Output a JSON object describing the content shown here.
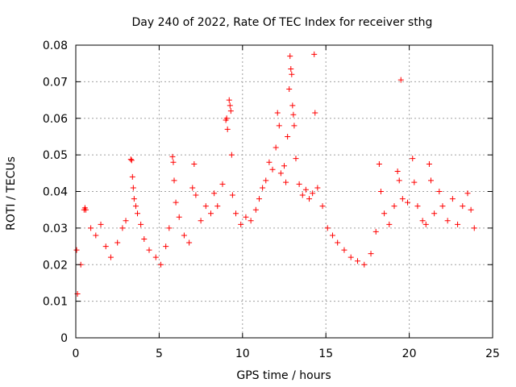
{
  "chart_data": {
    "type": "scatter",
    "title": "Day 240 of 2022, Rate Of TEC Index for receiver sthg",
    "xlabel": "GPS time / hours",
    "ylabel": "ROTI / TECUs",
    "xlim": [
      0,
      25
    ],
    "ylim": [
      0,
      0.08
    ],
    "xticks": [
      0,
      5,
      10,
      15,
      20,
      25
    ],
    "yticks": [
      0,
      0.01,
      0.02,
      0.03,
      0.04,
      0.05,
      0.06,
      0.07,
      0.08
    ],
    "grid": true,
    "marker": "plus",
    "color": "#ff0000",
    "series": [
      {
        "name": "ROTI",
        "points": [
          [
            0.05,
            0.024
          ],
          [
            0.1,
            0.012
          ],
          [
            0.3,
            0.02
          ],
          [
            0.5,
            0.035
          ],
          [
            0.55,
            0.0355
          ],
          [
            0.6,
            0.035
          ],
          [
            0.9,
            0.03
          ],
          [
            1.2,
            0.028
          ],
          [
            1.5,
            0.031
          ],
          [
            1.8,
            0.025
          ],
          [
            2.1,
            0.022
          ],
          [
            2.5,
            0.026
          ],
          [
            2.8,
            0.03
          ],
          [
            3.0,
            0.032
          ],
          [
            3.3,
            0.0488
          ],
          [
            3.35,
            0.0485
          ],
          [
            3.4,
            0.044
          ],
          [
            3.45,
            0.041
          ],
          [
            3.5,
            0.038
          ],
          [
            3.6,
            0.036
          ],
          [
            3.7,
            0.034
          ],
          [
            3.9,
            0.031
          ],
          [
            4.1,
            0.027
          ],
          [
            4.4,
            0.024
          ],
          [
            4.8,
            0.022
          ],
          [
            5.1,
            0.02
          ],
          [
            5.4,
            0.025
          ],
          [
            5.6,
            0.03
          ],
          [
            5.8,
            0.0495
          ],
          [
            5.85,
            0.048
          ],
          [
            5.9,
            0.043
          ],
          [
            6.0,
            0.037
          ],
          [
            6.2,
            0.033
          ],
          [
            6.5,
            0.028
          ],
          [
            6.8,
            0.026
          ],
          [
            7.0,
            0.041
          ],
          [
            7.1,
            0.0475
          ],
          [
            7.2,
            0.039
          ],
          [
            7.5,
            0.032
          ],
          [
            7.8,
            0.036
          ],
          [
            8.1,
            0.034
          ],
          [
            8.3,
            0.0395
          ],
          [
            8.5,
            0.036
          ],
          [
            8.8,
            0.042
          ],
          [
            9.0,
            0.0595
          ],
          [
            9.05,
            0.06
          ],
          [
            9.1,
            0.057
          ],
          [
            9.2,
            0.065
          ],
          [
            9.25,
            0.0635
          ],
          [
            9.3,
            0.062
          ],
          [
            9.35,
            0.05
          ],
          [
            9.4,
            0.039
          ],
          [
            9.6,
            0.034
          ],
          [
            9.9,
            0.031
          ],
          [
            10.2,
            0.033
          ],
          [
            10.5,
            0.032
          ],
          [
            10.8,
            0.035
          ],
          [
            11.0,
            0.038
          ],
          [
            11.2,
            0.041
          ],
          [
            11.4,
            0.043
          ],
          [
            11.6,
            0.048
          ],
          [
            11.8,
            0.046
          ],
          [
            12.0,
            0.052
          ],
          [
            12.1,
            0.0615
          ],
          [
            12.2,
            0.058
          ],
          [
            12.3,
            0.045
          ],
          [
            12.5,
            0.047
          ],
          [
            12.6,
            0.0425
          ],
          [
            12.7,
            0.055
          ],
          [
            12.8,
            0.068
          ],
          [
            12.85,
            0.077
          ],
          [
            12.9,
            0.0735
          ],
          [
            12.95,
            0.072
          ],
          [
            13.0,
            0.0635
          ],
          [
            13.05,
            0.061
          ],
          [
            13.1,
            0.058
          ],
          [
            13.2,
            0.049
          ],
          [
            13.4,
            0.042
          ],
          [
            13.6,
            0.039
          ],
          [
            13.8,
            0.0405
          ],
          [
            14.0,
            0.038
          ],
          [
            14.2,
            0.0395
          ],
          [
            14.3,
            0.0775
          ],
          [
            14.35,
            0.0615
          ],
          [
            14.5,
            0.041
          ],
          [
            14.8,
            0.036
          ],
          [
            15.1,
            0.03
          ],
          [
            15.4,
            0.028
          ],
          [
            15.7,
            0.026
          ],
          [
            16.1,
            0.024
          ],
          [
            16.5,
            0.022
          ],
          [
            16.9,
            0.021
          ],
          [
            17.3,
            0.02
          ],
          [
            17.7,
            0.023
          ],
          [
            18.0,
            0.029
          ],
          [
            18.2,
            0.0475
          ],
          [
            18.3,
            0.04
          ],
          [
            18.5,
            0.034
          ],
          [
            18.8,
            0.031
          ],
          [
            19.1,
            0.036
          ],
          [
            19.3,
            0.0455
          ],
          [
            19.4,
            0.043
          ],
          [
            19.5,
            0.0705
          ],
          [
            19.6,
            0.038
          ],
          [
            19.9,
            0.037
          ],
          [
            20.2,
            0.049
          ],
          [
            20.3,
            0.0425
          ],
          [
            20.5,
            0.036
          ],
          [
            20.8,
            0.032
          ],
          [
            21.0,
            0.031
          ],
          [
            21.2,
            0.0475
          ],
          [
            21.3,
            0.043
          ],
          [
            21.5,
            0.034
          ],
          [
            21.8,
            0.04
          ],
          [
            22.0,
            0.036
          ],
          [
            22.3,
            0.032
          ],
          [
            22.6,
            0.038
          ],
          [
            22.9,
            0.031
          ],
          [
            23.2,
            0.036
          ],
          [
            23.5,
            0.0395
          ],
          [
            23.7,
            0.035
          ],
          [
            23.9,
            0.03
          ]
        ]
      }
    ]
  }
}
